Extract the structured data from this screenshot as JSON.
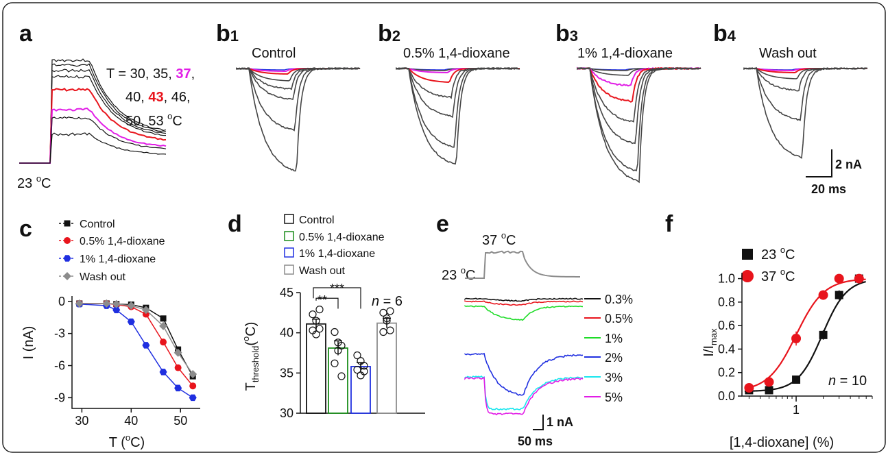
{
  "colors": {
    "black": "#111111",
    "red": "#e8141c",
    "magenta": "#e11de6",
    "blue": "#1f2fe0",
    "gray": "#8c8c8c",
    "green": "#1edc28",
    "cyan": "#18e6ee",
    "trace_gray": "#444444"
  },
  "panel_a": {
    "letter": "a",
    "temp_prefix": "T = 30, 35, ",
    "temp_37": "37",
    "temp_comma": ",",
    "temp_line2a": "40, ",
    "temp_43": "43",
    "temp_line2b": ", 46,",
    "temp_line3": "50, 53 ",
    "deg": "o",
    "unit_c": "C",
    "baseline_label": "23 ",
    "temps": [
      30,
      35,
      37,
      40,
      43,
      46,
      50,
      53
    ]
  },
  "panel_b": {
    "letter": "b",
    "subs": [
      "1",
      "2",
      "3",
      "4"
    ],
    "titles": [
      "Control",
      "0.5% 1,4-dioxane",
      "1% 1,4-dioxane",
      "Wash out"
    ],
    "scale_y": "2 nA",
    "scale_x": "20 ms"
  },
  "panel_c": {
    "letter": "c",
    "legend": [
      "Control",
      "0.5% 1,4-dioxane",
      "1% 1,4-dioxane",
      "Wash out"
    ],
    "ylabel": "I (nA)",
    "xlabel_pre": "T (",
    "xlabel_post": "C)",
    "deg": "o",
    "yticks": [
      "0",
      "-3",
      "-6",
      "-9"
    ],
    "xticks": [
      "30",
      "40",
      "50"
    ]
  },
  "panel_d": {
    "letter": "d",
    "legend": [
      "Control",
      "0.5% 1,4-dioxane",
      "1% 1,4-dioxane",
      "Wash out"
    ],
    "ylabel_main": "T",
    "ylabel_sub": "threshold",
    "ylabel_unit_pre": "(",
    "ylabel_unit_post": "C)",
    "deg": "o",
    "yticks": [
      "30",
      "35",
      "40",
      "45"
    ],
    "sig1": "**",
    "sig2": "***",
    "n_italic": "n",
    "n_rest": " = 6"
  },
  "panel_e": {
    "letter": "e",
    "temp_high": "37 ",
    "temp_low": "23 ",
    "deg": "o",
    "unit_c": "C",
    "conc_labels": [
      "0.3%",
      "0.5%",
      "1%",
      "2%",
      "3%",
      "5%"
    ],
    "scale_y": "1 nA",
    "scale_x": "50 ms"
  },
  "panel_f": {
    "letter": "f",
    "legend": [
      "23 ",
      "37 "
    ],
    "deg": "o",
    "unit_c": "C",
    "ylabel_main": "I/I",
    "ylabel_sub": "max",
    "xlabel": "[1,4-dioxane] (%)",
    "yticks": [
      "0.0",
      "0.2",
      "0.4",
      "0.6",
      "0.8",
      "1.0"
    ],
    "xtick": "1",
    "n_italic": "n",
    "n_rest": " = 10"
  },
  "chart_data": [
    {
      "type": "line",
      "panel": "c",
      "xlabel": "T (oC)",
      "ylabel": "I (nA)",
      "xlim": [
        28,
        54
      ],
      "ylim": [
        -10,
        0.5
      ],
      "series": [
        {
          "name": "Control",
          "x": [
            29.5,
            35,
            37,
            40,
            43,
            46.5,
            49.5,
            52.5
          ],
          "y": [
            -0.2,
            -0.2,
            -0.25,
            -0.3,
            -0.6,
            -1.6,
            -4.5,
            -7.0
          ]
        },
        {
          "name": "0.5% 1,4-dioxane",
          "x": [
            29.5,
            35,
            37,
            40,
            43,
            46.5,
            49.5,
            52.5
          ],
          "y": [
            -0.2,
            -0.2,
            -0.3,
            -0.5,
            -1.2,
            -3.8,
            -6.2,
            -7.9
          ]
        },
        {
          "name": "1% 1,4-dioxane",
          "x": [
            29.5,
            35,
            37,
            40,
            43,
            46.5,
            49.5,
            52.5
          ],
          "y": [
            -0.25,
            -0.4,
            -0.8,
            -1.9,
            -4.1,
            -6.6,
            -8.1,
            -9.0
          ]
        },
        {
          "name": "Wash out",
          "x": [
            29.5,
            35,
            37,
            40,
            43,
            46.5,
            49.5,
            52.5
          ],
          "y": [
            -0.2,
            -0.2,
            -0.25,
            -0.4,
            -0.8,
            -2.3,
            -4.8,
            -6.8
          ]
        }
      ]
    },
    {
      "type": "bar",
      "panel": "d",
      "categories": [
        "Control",
        "0.5% 1,4-dioxane",
        "1% 1,4-dioxane",
        "Wash out"
      ],
      "values": [
        41.1,
        38.1,
        35.8,
        41.2
      ],
      "errors": [
        0.6,
        0.9,
        0.5,
        0.6
      ],
      "points": [
        [
          42.3,
          41.5,
          40.5,
          40.3,
          39.8,
          42.9
        ],
        [
          40.1,
          38.8,
          38.4,
          36.2,
          37.8,
          34.6
        ],
        [
          37.2,
          36.5,
          35.9,
          35.4,
          34.7,
          35.2
        ],
        [
          42.5,
          41.8,
          40.3,
          40.1,
          41.5,
          42.7
        ]
      ],
      "ylim": [
        30,
        45
      ]
    },
    {
      "type": "scatter",
      "panel": "f",
      "xlabel": "[1,4-dioxane] (%)",
      "ylabel": "I/Imax",
      "xscale": "log",
      "xlim": [
        0.25,
        7
      ],
      "ylim": [
        0,
        1.05
      ],
      "series": [
        {
          "name": "23 oC",
          "x": [
            0.3,
            0.5,
            1,
            2,
            3,
            5
          ],
          "y": [
            0.05,
            0.05,
            0.14,
            0.52,
            0.86,
            1.0
          ],
          "err": [
            0.02,
            0.02,
            0.03,
            0.04,
            0.04,
            0.02
          ]
        },
        {
          "name": "37 oC",
          "x": [
            0.3,
            0.5,
            1,
            2,
            3,
            5
          ],
          "y": [
            0.07,
            0.12,
            0.49,
            0.86,
            1.0,
            1.0
          ],
          "err": [
            0.02,
            0.02,
            0.06,
            0.04,
            0.02,
            0.01
          ]
        }
      ]
    }
  ]
}
